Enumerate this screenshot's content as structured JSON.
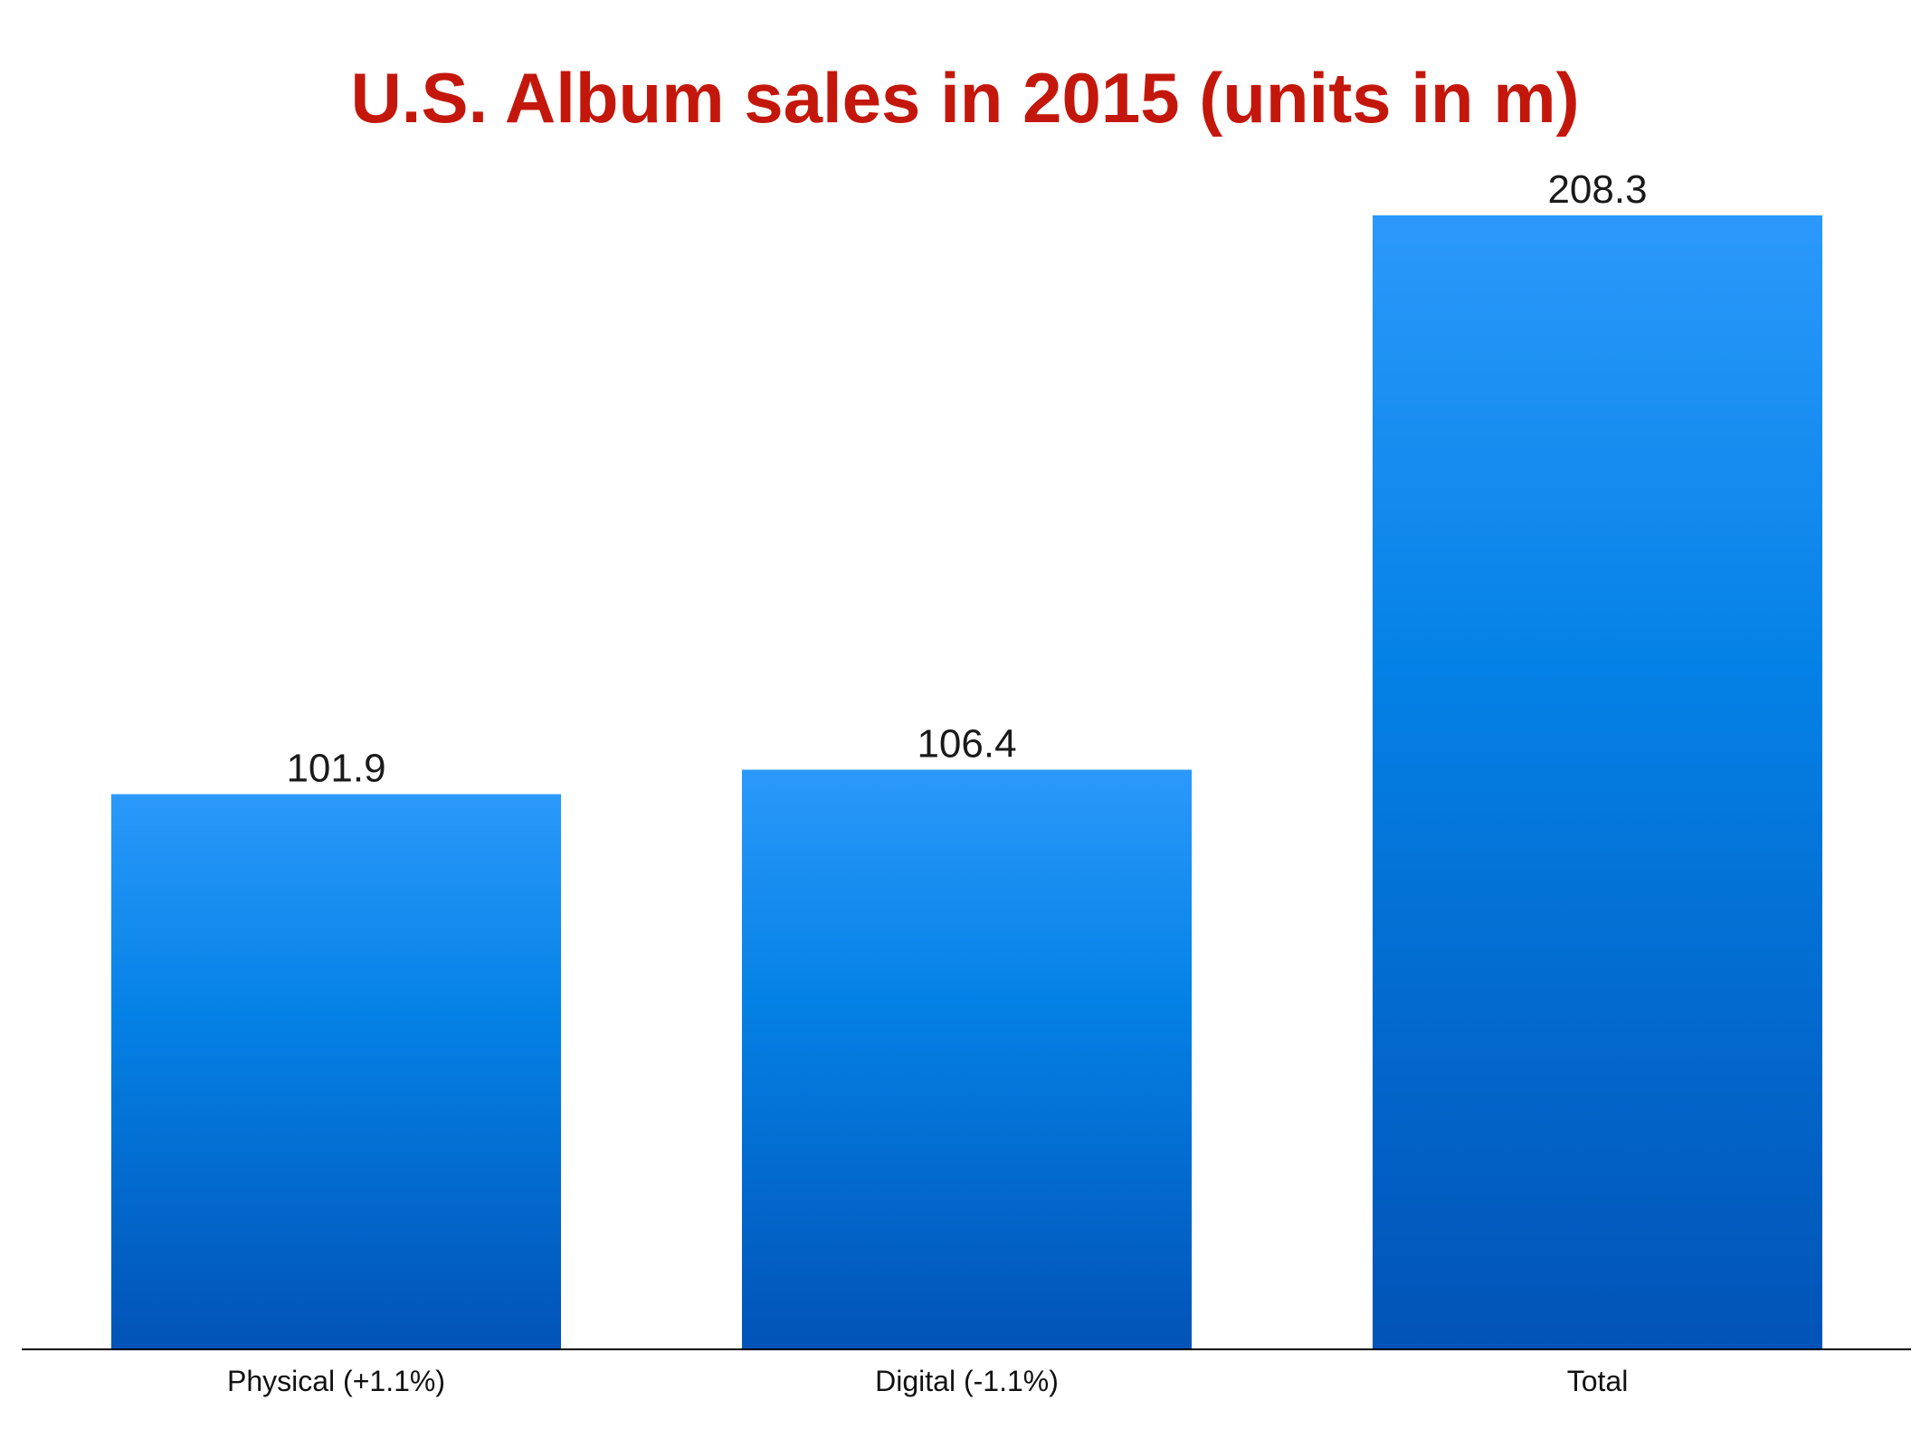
{
  "chart_data": {
    "type": "bar",
    "title": "U.S. Album sales in 2015 (units in m)",
    "categories": [
      "Physical (+1.1%)",
      "Digital (-1.1%)",
      "Total"
    ],
    "values": [
      101.9,
      106.4,
      208.3
    ],
    "data_labels": [
      "101.9",
      "106.4",
      "208.3"
    ],
    "xlabel": "",
    "ylabel": "",
    "ylim": [
      0,
      208.3
    ],
    "grid": false,
    "legend": "none"
  },
  "colors": {
    "title": "#c4170c",
    "bar_top": "#2b99fb",
    "bar_mid": "#0481e6",
    "bar_bottom": "#0253b7",
    "axis": "#000000"
  }
}
